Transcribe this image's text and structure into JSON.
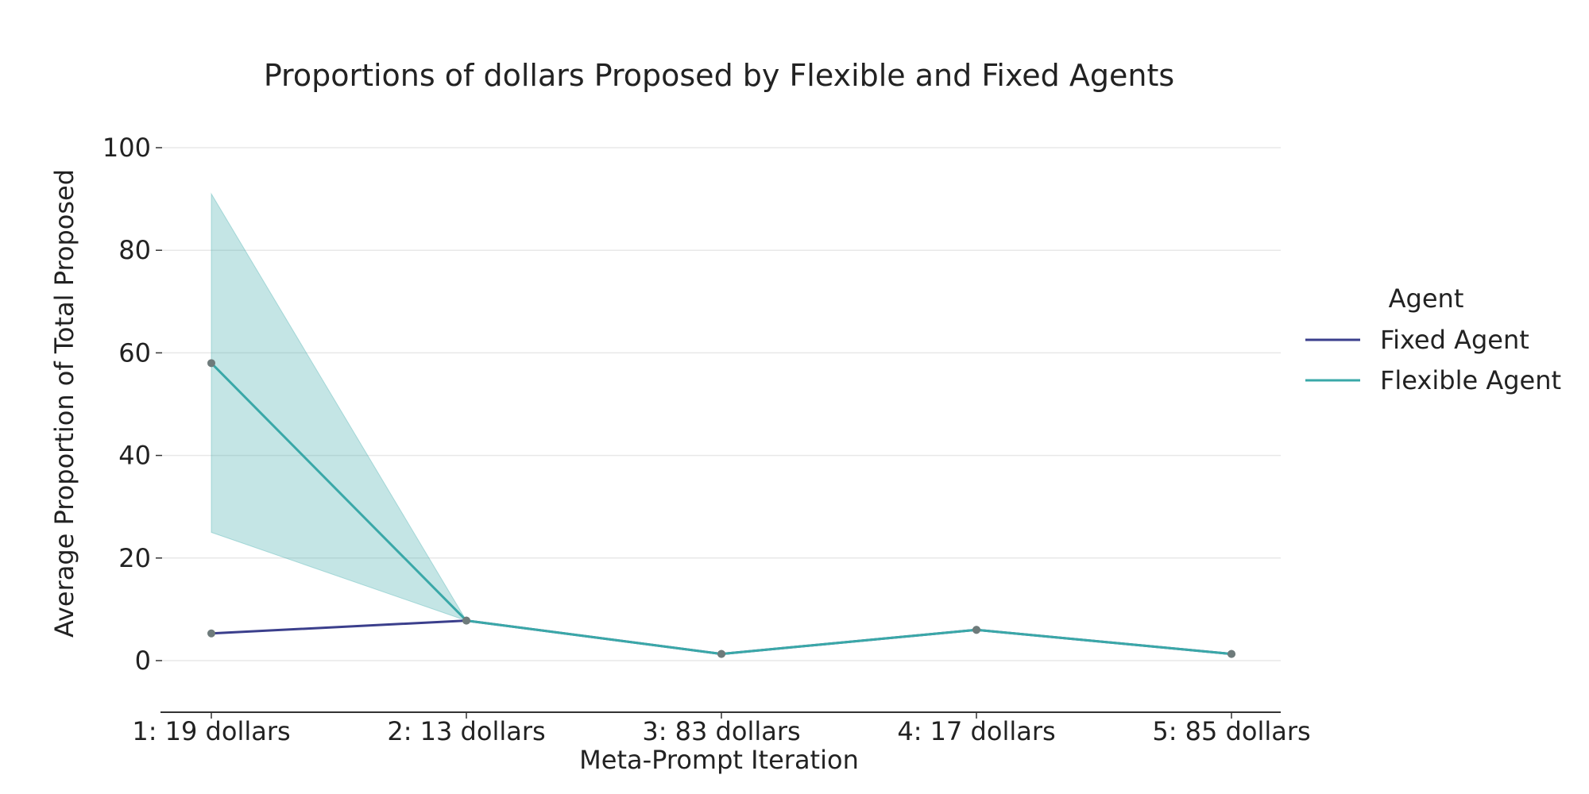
{
  "chart_data": {
    "type": "line",
    "title": "Proportions of dollars Proposed by Flexible and Fixed Agents",
    "xlabel": "Meta-Prompt Iteration",
    "ylabel": "Average Proportion of Total Proposed",
    "categories": [
      "1: 19 dollars",
      "2: 13 dollars",
      "3: 83 dollars",
      "4: 17 dollars",
      "5: 85 dollars"
    ],
    "yticks": [
      0,
      20,
      40,
      60,
      80,
      100
    ],
    "ylim": [
      -10,
      110
    ],
    "grid": "horizontal",
    "legend_position": "right",
    "legend_title": "Agent",
    "series": [
      {
        "name": "Fixed Agent",
        "color": "#3b3f8c",
        "values": [
          5.3,
          7.8,
          1.3,
          6.0,
          1.3
        ]
      },
      {
        "name": "Flexible Agent",
        "color": "#3aa8a8",
        "values": [
          58.0,
          7.8,
          1.3,
          6.0,
          1.3
        ],
        "ci_lower": [
          25.0,
          7.8,
          1.3,
          6.0,
          1.3
        ],
        "ci_upper": [
          91.0,
          7.8,
          1.3,
          6.0,
          1.3
        ],
        "band_color": "#3aa8a8"
      }
    ],
    "marker_color": "#6e7b7b",
    "grid_color": "#e8e8e8",
    "axis_color": "#333333"
  }
}
